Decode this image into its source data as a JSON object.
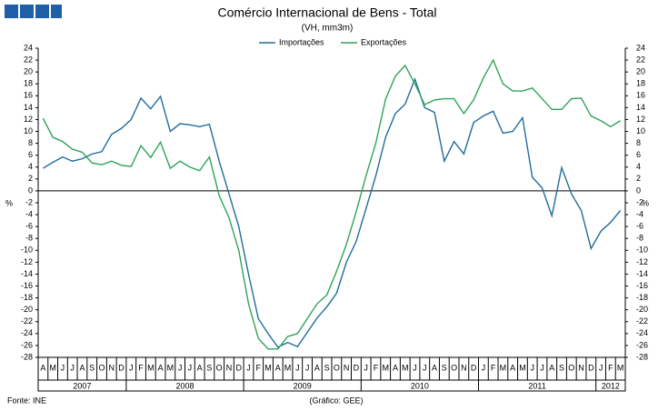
{
  "chart_data": {
    "type": "line",
    "title": "Comércio Internacional de Bens - Total",
    "subtitle": "(VH, mm3m)",
    "y_label": "%",
    "source": "Fonte: INE",
    "credit": "(Gráfico: GEE)",
    "categories": [
      "A",
      "M",
      "J",
      "J",
      "A",
      "S",
      "O",
      "N",
      "D",
      "J",
      "F",
      "M",
      "A",
      "M",
      "J",
      "J",
      "A",
      "S",
      "O",
      "N",
      "D",
      "J",
      "F",
      "M",
      "A",
      "M",
      "J",
      "J",
      "A",
      "S",
      "O",
      "N",
      "D",
      "J",
      "F",
      "M",
      "A",
      "M",
      "J",
      "J",
      "A",
      "S",
      "O",
      "N",
      "D",
      "J",
      "F",
      "M",
      "A",
      "M",
      "J",
      "J",
      "A",
      "S",
      "O",
      "N",
      "D",
      "J",
      "F",
      "M"
    ],
    "years": [
      "2007",
      "2008",
      "2009",
      "2010",
      "2011",
      "2012"
    ],
    "series": [
      {
        "name": "Importações",
        "color": "#1f6d9c",
        "values": [
          3.8,
          4.8,
          5.7,
          5.0,
          5.4,
          6.2,
          6.6,
          9.5,
          10.5,
          12,
          15.6,
          13.8,
          15.9,
          10,
          11.3,
          11.1,
          10.8,
          11.2,
          5,
          -0.5,
          -6,
          -14,
          -21.5,
          -24,
          -26.3,
          -25.5,
          -26.2,
          -23.8,
          -21.4,
          -19.5,
          -17.2,
          -12,
          -8.5,
          -3,
          2.5,
          9,
          13,
          14.6,
          18.8,
          14,
          13.2,
          5,
          8.3,
          6.2,
          11.5,
          12.6,
          13.4,
          9.7,
          10,
          12.3,
          2.3,
          0.5,
          -4.2,
          3.9,
          -0.5,
          -3.3,
          -9.7,
          -6.8,
          -5.3,
          -3.3
        ]
      },
      {
        "name": "Exportações",
        "color": "#2ea35a",
        "values": [
          12.2,
          9,
          8.3,
          7,
          6.5,
          4.7,
          4.4,
          5,
          4.3,
          4.1,
          7.6,
          5.6,
          8.2,
          3.8,
          5,
          4,
          3.4,
          5.7,
          -0.8,
          -4.5,
          -10,
          -19,
          -24.8,
          -26.6,
          -26.6,
          -24.5,
          -24,
          -21.5,
          -19,
          -17.5,
          -13.5,
          -9,
          -3.5,
          2.5,
          8,
          15.4,
          19.3,
          21.1,
          18,
          14.5,
          15.3,
          15.5,
          15.5,
          13,
          15.3,
          19,
          22,
          18,
          16.8,
          16.8,
          17.3,
          15.5,
          13.7,
          13.7,
          15.5,
          15.6,
          12.6,
          11.8,
          10.8,
          11.8
        ]
      }
    ],
    "ylim": [
      -28,
      24
    ],
    "yticks": [
      -28,
      -26,
      -24,
      -22,
      -20,
      -18,
      -16,
      -14,
      -12,
      -10,
      -8,
      -6,
      -4,
      -2,
      0,
      2,
      4,
      6,
      8,
      10,
      12,
      14,
      16,
      18,
      20,
      22,
      24
    ],
    "grid": false,
    "legend": "top"
  }
}
